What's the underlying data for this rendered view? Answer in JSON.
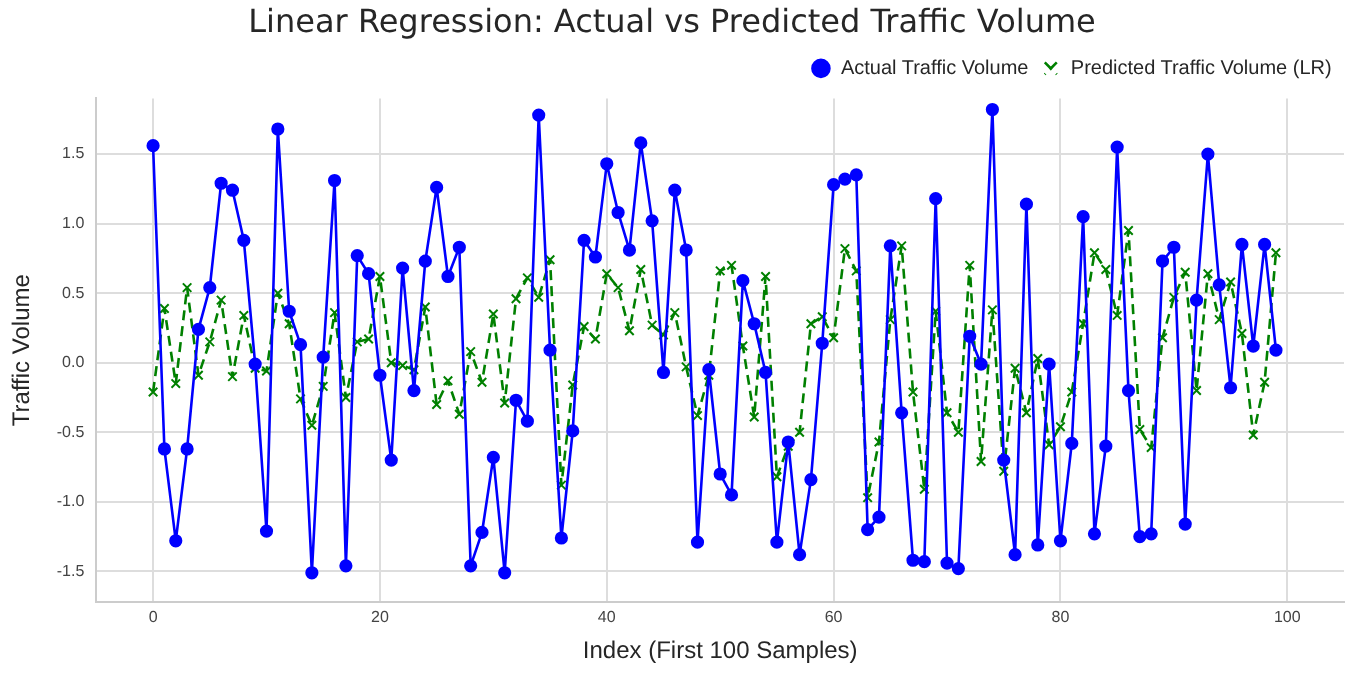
{
  "chart_data": {
    "type": "line",
    "title": "Linear Regression: Actual vs Predicted Traffic Volume",
    "xlabel": "Index (First 100 Samples)",
    "ylabel": "Traffic Volume",
    "x": [
      0,
      1,
      2,
      3,
      4,
      5,
      6,
      7,
      8,
      9,
      10,
      11,
      12,
      13,
      14,
      15,
      16,
      17,
      18,
      19,
      20,
      21,
      22,
      23,
      24,
      25,
      26,
      27,
      28,
      29,
      30,
      31,
      32,
      33,
      34,
      35,
      36,
      37,
      38,
      39,
      40,
      41,
      42,
      43,
      44,
      45,
      46,
      47,
      48,
      49,
      50,
      51,
      52,
      53,
      54,
      55,
      56,
      57,
      58,
      59,
      60,
      61,
      62,
      63,
      64,
      65,
      66,
      67,
      68,
      69,
      70,
      71,
      72,
      73,
      74,
      75,
      76,
      77,
      78,
      79,
      80,
      81,
      82,
      83,
      84,
      85,
      86,
      87,
      88,
      89,
      90,
      91,
      92,
      93,
      94,
      95,
      96,
      97,
      98,
      99
    ],
    "series": [
      {
        "name": "Actual Traffic Volume",
        "color": "#0000ff",
        "marker": "circle",
        "line_style": "solid",
        "values": [
          1.56,
          -0.62,
          -1.28,
          -0.62,
          0.24,
          0.54,
          1.29,
          1.24,
          0.88,
          -0.01,
          -1.21,
          1.68,
          0.37,
          0.13,
          -1.51,
          0.04,
          1.31,
          -1.46,
          0.77,
          0.64,
          -0.09,
          -0.7,
          0.68,
          -0.2,
          0.73,
          1.26,
          0.62,
          0.83,
          -1.46,
          -1.22,
          -0.68,
          -1.51,
          -0.27,
          -0.42,
          1.78,
          0.09,
          -1.26,
          -0.49,
          0.88,
          0.76,
          1.43,
          1.08,
          0.81,
          1.58,
          1.02,
          -0.07,
          1.24,
          0.81,
          -1.29,
          -0.05,
          -0.8,
          -0.95,
          0.59,
          0.28,
          -0.07,
          -1.29,
          -0.57,
          -1.38,
          -0.84,
          0.14,
          1.28,
          1.32,
          1.35,
          -1.2,
          -1.11,
          0.84,
          -0.36,
          -1.42,
          -1.43,
          1.18,
          -1.44,
          -1.48,
          0.19,
          -0.01,
          1.82,
          -0.7,
          -1.38,
          1.14,
          -1.31,
          -0.01,
          -1.28,
          -0.58,
          1.05,
          -1.23,
          -0.6,
          1.55,
          -0.2,
          -1.25,
          -1.23,
          0.73,
          0.83,
          -1.16,
          0.45,
          1.5,
          0.56,
          -0.18,
          0.85,
          0.12,
          0.85,
          0.09
        ]
      },
      {
        "name": "Predicted Traffic Volume (LR)",
        "color": "#008000",
        "marker": "cross",
        "line_style": "dashed",
        "values": [
          -0.21,
          0.39,
          -0.15,
          0.54,
          -0.09,
          0.15,
          0.45,
          -0.1,
          0.34,
          -0.04,
          -0.06,
          0.5,
          0.28,
          -0.26,
          -0.45,
          -0.17,
          0.36,
          -0.25,
          0.15,
          0.17,
          0.62,
          0.0,
          -0.02,
          -0.05,
          0.4,
          -0.3,
          -0.13,
          -0.37,
          0.08,
          -0.14,
          0.35,
          -0.29,
          0.46,
          0.61,
          0.47,
          0.74,
          -0.88,
          -0.16,
          0.26,
          0.17,
          0.64,
          0.54,
          0.23,
          0.67,
          0.27,
          0.2,
          0.36,
          -0.03,
          -0.38,
          -0.09,
          0.66,
          0.7,
          0.12,
          -0.39,
          0.62,
          -0.82,
          -0.6,
          -0.5,
          0.28,
          0.33,
          0.18,
          0.82,
          0.66,
          -0.97,
          -0.57,
          0.31,
          0.84,
          -0.21,
          -0.91,
          0.37,
          -0.36,
          -0.5,
          0.7,
          -0.71,
          0.38,
          -0.78,
          -0.04,
          -0.36,
          0.03,
          -0.59,
          -0.46,
          -0.21,
          0.28,
          0.79,
          0.67,
          0.34,
          0.95,
          -0.48,
          -0.61,
          0.18,
          0.47,
          0.65,
          -0.2,
          0.64,
          0.31,
          0.58,
          0.21,
          -0.52,
          -0.14,
          0.79
        ]
      }
    ],
    "xlim": [
      -5,
      105
    ],
    "xticks": [
      0,
      20,
      40,
      60,
      80,
      100
    ],
    "ylim": [
      -1.72,
      1.9
    ],
    "yticks": [
      -1.5,
      {
        "value": -1,
        "label": "-1.0"
      },
      -0.5,
      {
        "value": 0,
        "label": "0.0"
      },
      0.5,
      {
        "value": 1,
        "label": "1.0"
      },
      1.5
    ],
    "grid": true,
    "legend": "top right"
  }
}
